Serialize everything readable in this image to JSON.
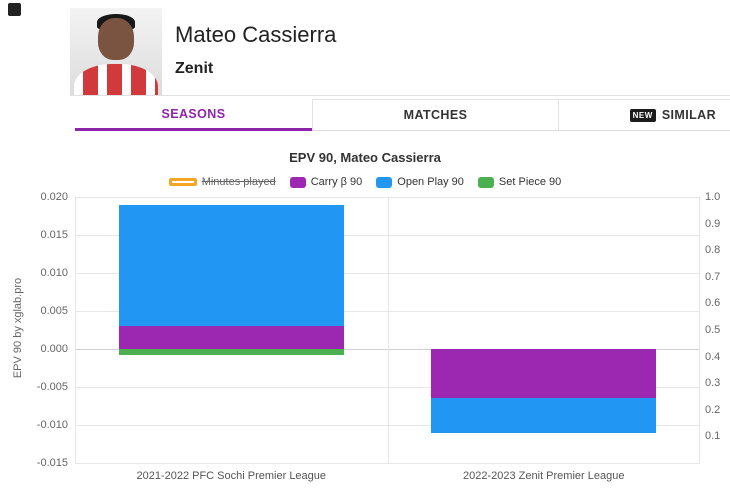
{
  "header": {
    "player_name": "Mateo Cassierra",
    "team": "Zenit"
  },
  "tabs": [
    {
      "id": "seasons",
      "label": "SEASONS",
      "active": true
    },
    {
      "id": "matches",
      "label": "MATCHES",
      "active": false
    },
    {
      "id": "similar",
      "label": "SIMILAR",
      "active": false,
      "badge": "NEW"
    }
  ],
  "colors": {
    "accent_purple": "#8e24aa",
    "carry": "#9c27b0",
    "open_play": "#2196f3",
    "set_piece": "#4caf50",
    "minutes_played": "#f5a623"
  },
  "chart_data": {
    "type": "bar",
    "stacked": true,
    "title": "EPV 90, Mateo Cassierra",
    "categories": [
      "2021-2022 PFC Sochi Premier League",
      "2022-2023 Zenit Premier League"
    ],
    "series": [
      {
        "name": "Carry β 90",
        "color": "#9c27b0",
        "values": [
          0.003,
          -0.0065
        ]
      },
      {
        "name": "Open Play 90",
        "color": "#2196f3",
        "values": [
          0.016,
          -0.0045
        ]
      },
      {
        "name": "Set Piece 90",
        "color": "#4caf50",
        "values": [
          -0.0008,
          0
        ]
      }
    ],
    "legend": [
      {
        "label": "Minutes played",
        "color": "#f5a623",
        "style": "outline",
        "disabled": true
      },
      {
        "label": "Carry β 90",
        "color": "#9c27b0",
        "style": "fill",
        "disabled": false
      },
      {
        "label": "Open Play 90",
        "color": "#2196f3",
        "style": "fill",
        "disabled": false
      },
      {
        "label": "Set Piece 90",
        "color": "#4caf50",
        "style": "fill",
        "disabled": false
      }
    ],
    "ylabel": "EPV 90 by xglab.pro",
    "ylim": [
      -0.015,
      0.02
    ],
    "ytick_step": 0.005,
    "right_axis": {
      "min": 0,
      "max": 1,
      "tick_step": 0.1,
      "labels": [
        "1.0",
        "0.9",
        "0.8",
        "0.7",
        "0.6",
        "0.5",
        "0.4",
        "0.3",
        "0.2",
        "0.1"
      ]
    },
    "grid": true,
    "legend_position": "top"
  }
}
